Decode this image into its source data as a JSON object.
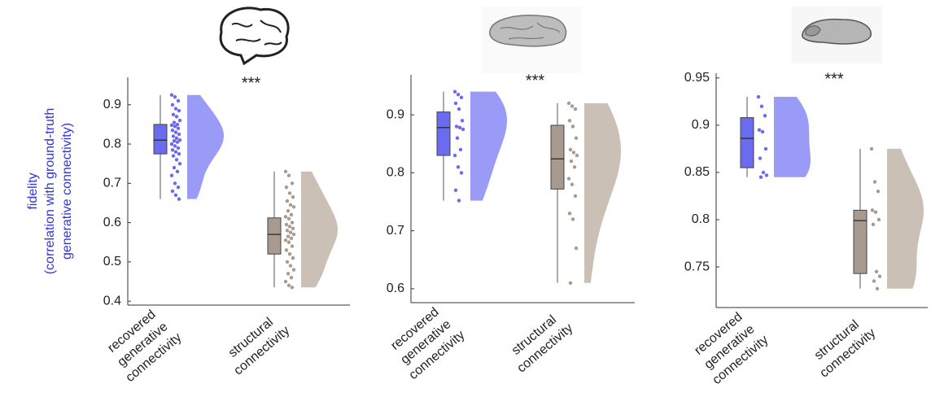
{
  "chart_data": [
    {
      "type": "raincloud",
      "annotation": "***",
      "ylabel": [
        "fidelity",
        "(correlation with ground-truth",
        "generative connectivity)"
      ],
      "ylabel_color": "#3333dd",
      "ylim": [
        0.39,
        0.97
      ],
      "yticks": [
        0.4,
        0.5,
        0.6,
        0.7,
        0.8,
        0.9
      ],
      "categories": [
        [
          "recovered",
          "generative",
          "connectivity"
        ],
        [
          "structural",
          "connectivity"
        ]
      ],
      "groups": [
        {
          "color": "#6b6bf0",
          "violin_color": "#9a9af7",
          "box": {
            "min": 0.66,
            "q1": 0.775,
            "median": 0.81,
            "q3": 0.85,
            "max": 0.925
          },
          "values": [
            0.925,
            0.92,
            0.91,
            0.9,
            0.89,
            0.885,
            0.875,
            0.87,
            0.86,
            0.855,
            0.85,
            0.848,
            0.845,
            0.84,
            0.835,
            0.83,
            0.825,
            0.82,
            0.815,
            0.81,
            0.808,
            0.805,
            0.8,
            0.795,
            0.79,
            0.785,
            0.78,
            0.775,
            0.77,
            0.76,
            0.75,
            0.74,
            0.73,
            0.72,
            0.7,
            0.69,
            0.68,
            0.67,
            0.66
          ]
        },
        {
          "color": "#a89a8e",
          "violin_color": "#cbc0b6",
          "box": {
            "min": 0.435,
            "q1": 0.52,
            "median": 0.57,
            "q3": 0.612,
            "max": 0.73
          },
          "values": [
            0.73,
            0.72,
            0.7,
            0.69,
            0.675,
            0.665,
            0.655,
            0.645,
            0.64,
            0.63,
            0.62,
            0.615,
            0.61,
            0.6,
            0.595,
            0.59,
            0.585,
            0.58,
            0.575,
            0.57,
            0.565,
            0.56,
            0.555,
            0.55,
            0.54,
            0.53,
            0.52,
            0.51,
            0.5,
            0.49,
            0.48,
            0.47,
            0.46,
            0.45,
            0.44,
            0.435
          ]
        }
      ]
    },
    {
      "type": "raincloud",
      "annotation": "***",
      "ylim": [
        0.576,
        0.969
      ],
      "yticks": [
        0.6,
        0.7,
        0.8,
        0.9
      ],
      "categories": [
        [
          "recovered",
          "generative",
          "connectivity"
        ],
        [
          "structural",
          "connectivity"
        ]
      ],
      "groups": [
        {
          "color": "#6b6bf0",
          "violin_color": "#9a9af7",
          "box": {
            "min": 0.752,
            "q1": 0.83,
            "median": 0.878,
            "q3": 0.905,
            "max": 0.94
          },
          "values": [
            0.94,
            0.935,
            0.93,
            0.92,
            0.91,
            0.89,
            0.88,
            0.878,
            0.875,
            0.86,
            0.84,
            0.83,
            0.81,
            0.8,
            0.77,
            0.752
          ]
        },
        {
          "color": "#a89a8e",
          "violin_color": "#cbc0b6",
          "box": {
            "min": 0.61,
            "q1": 0.772,
            "median": 0.824,
            "q3": 0.882,
            "max": 0.92
          },
          "values": [
            0.92,
            0.915,
            0.91,
            0.89,
            0.88,
            0.86,
            0.84,
            0.835,
            0.83,
            0.82,
            0.81,
            0.79,
            0.78,
            0.76,
            0.73,
            0.72,
            0.67,
            0.61
          ]
        }
      ]
    },
    {
      "type": "raincloud",
      "annotation": "***",
      "ylim": [
        0.707,
        0.955
      ],
      "yticks": [
        0.75,
        0.8,
        0.85,
        0.9,
        0.95
      ],
      "categories": [
        [
          "recovered",
          "generative",
          "connectivity"
        ],
        [
          "structural",
          "connectivity"
        ]
      ],
      "groups": [
        {
          "color": "#6b6bf0",
          "violin_color": "#9a9af7",
          "box": {
            "min": 0.845,
            "q1": 0.855,
            "median": 0.886,
            "q3": 0.908,
            "max": 0.93
          },
          "values": [
            0.93,
            0.92,
            0.91,
            0.895,
            0.893,
            0.875,
            0.865,
            0.85,
            0.847,
            0.845
          ]
        },
        {
          "color": "#a89a8e",
          "violin_color": "#cbc0b6",
          "box": {
            "min": 0.727,
            "q1": 0.743,
            "median": 0.799,
            "q3": 0.81,
            "max": 0.875
          },
          "values": [
            0.875,
            0.84,
            0.83,
            0.81,
            0.808,
            0.8,
            0.795,
            0.745,
            0.74,
            0.735,
            0.727
          ]
        }
      ]
    }
  ]
}
